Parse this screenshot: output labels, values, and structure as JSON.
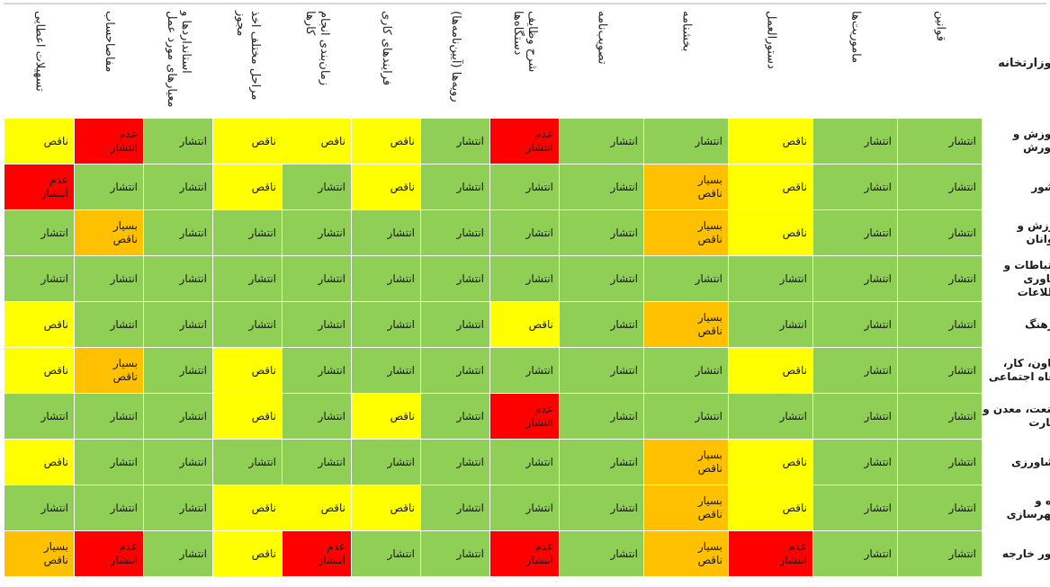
{
  "table": {
    "corner_header": "وزارتخانه",
    "column_headers": [
      "قوانین",
      "ماموریت‌ها",
      "دستورالعمل",
      "بخشنامه",
      "تصویب‌نامه",
      "شرح وظایف دستگاه‌ها",
      "رویه‌ها (آیین‌نامه‌ها)",
      "فرایندهای کاری",
      "زمان‌بندی انجام کارها",
      "مراحل مختلف اخذ مجوز",
      "استانداردها و معیارهای مورد عمل",
      "مفاصاحساب",
      "تسهیلات اعطایی"
    ],
    "rows": [
      {
        "ministry": "آموزش و پرورش",
        "cells": [
          {
            "t": "انتشار",
            "s": "pub"
          },
          {
            "t": "انتشار",
            "s": "pub"
          },
          {
            "t": "ناقص",
            "s": "inc"
          },
          {
            "t": "انتشار",
            "s": "pub"
          },
          {
            "t": "انتشار",
            "s": "pub"
          },
          {
            "t": "عدم انتشار",
            "s": "non"
          },
          {
            "t": "انتشار",
            "s": "pub"
          },
          {
            "t": "ناقص",
            "s": "inc"
          },
          {
            "t": "ناقص",
            "s": "inc"
          },
          {
            "t": "ناقص",
            "s": "inc"
          },
          {
            "t": "انتشار",
            "s": "pub"
          },
          {
            "t": "عدم انتشار",
            "s": "non"
          },
          {
            "t": "ناقص",
            "s": "inc"
          }
        ]
      },
      {
        "ministry": "کشور",
        "cells": [
          {
            "t": "انتشار",
            "s": "pub"
          },
          {
            "t": "انتشار",
            "s": "pub"
          },
          {
            "t": "ناقص",
            "s": "inc"
          },
          {
            "t": "بسیار ناقص",
            "s": "vinc"
          },
          {
            "t": "انتشار",
            "s": "pub"
          },
          {
            "t": "انتشار",
            "s": "pub"
          },
          {
            "t": "انتشار",
            "s": "pub"
          },
          {
            "t": "ناقص",
            "s": "inc"
          },
          {
            "t": "انتشار",
            "s": "pub"
          },
          {
            "t": "ناقص",
            "s": "inc"
          },
          {
            "t": "انتشار",
            "s": "pub"
          },
          {
            "t": "انتشار",
            "s": "pub"
          },
          {
            "t": "عدم انتشار",
            "s": "non"
          }
        ]
      },
      {
        "ministry": "ورزش و جوانان",
        "cells": [
          {
            "t": "انتشار",
            "s": "pub"
          },
          {
            "t": "انتشار",
            "s": "pub"
          },
          {
            "t": "ناقص",
            "s": "inc"
          },
          {
            "t": "بسیار ناقص",
            "s": "vinc"
          },
          {
            "t": "انتشار",
            "s": "pub"
          },
          {
            "t": "انتشار",
            "s": "pub"
          },
          {
            "t": "انتشار",
            "s": "pub"
          },
          {
            "t": "انتشار",
            "s": "pub"
          },
          {
            "t": "انتشار",
            "s": "pub"
          },
          {
            "t": "انتشار",
            "s": "pub"
          },
          {
            "t": "انتشار",
            "s": "pub"
          },
          {
            "t": "بسیار ناقص",
            "s": "vinc"
          },
          {
            "t": "انتشار",
            "s": "pub"
          }
        ]
      },
      {
        "ministry": "ارتباطات و فناوری اطلاعات",
        "cells": [
          {
            "t": "انتشار",
            "s": "pub"
          },
          {
            "t": "انتشار",
            "s": "pub"
          },
          {
            "t": "انتشار",
            "s": "pub"
          },
          {
            "t": "انتشار",
            "s": "pub"
          },
          {
            "t": "انتشار",
            "s": "pub"
          },
          {
            "t": "انتشار",
            "s": "pub"
          },
          {
            "t": "انتشار",
            "s": "pub"
          },
          {
            "t": "انتشار",
            "s": "pub"
          },
          {
            "t": "انتشار",
            "s": "pub"
          },
          {
            "t": "انتشار",
            "s": "pub"
          },
          {
            "t": "انتشار",
            "s": "pub"
          },
          {
            "t": "انتشار",
            "s": "pub"
          },
          {
            "t": "انتشار",
            "s": "pub"
          }
        ]
      },
      {
        "ministry": "فرهنگ",
        "cells": [
          {
            "t": "انتشار",
            "s": "pub"
          },
          {
            "t": "انتشار",
            "s": "pub"
          },
          {
            "t": "انتشار",
            "s": "pub"
          },
          {
            "t": "بسیار ناقص",
            "s": "vinc"
          },
          {
            "t": "انتشار",
            "s": "pub"
          },
          {
            "t": "ناقص",
            "s": "inc"
          },
          {
            "t": "انتشار",
            "s": "pub"
          },
          {
            "t": "انتشار",
            "s": "pub"
          },
          {
            "t": "انتشار",
            "s": "pub"
          },
          {
            "t": "انتشار",
            "s": "pub"
          },
          {
            "t": "انتشار",
            "s": "pub"
          },
          {
            "t": "انتشار",
            "s": "pub"
          },
          {
            "t": "ناقص",
            "s": "inc"
          }
        ]
      },
      {
        "ministry": "تعاون، کار، رفاه اجتماعی",
        "cells": [
          {
            "t": "انتشار",
            "s": "pub"
          },
          {
            "t": "انتشار",
            "s": "pub"
          },
          {
            "t": "ناقص",
            "s": "inc"
          },
          {
            "t": "انتشار",
            "s": "pub"
          },
          {
            "t": "انتشار",
            "s": "pub"
          },
          {
            "t": "انتشار",
            "s": "pub"
          },
          {
            "t": "انتشار",
            "s": "pub"
          },
          {
            "t": "انتشار",
            "s": "pub"
          },
          {
            "t": "انتشار",
            "s": "pub"
          },
          {
            "t": "ناقص",
            "s": "inc"
          },
          {
            "t": "انتشار",
            "s": "pub"
          },
          {
            "t": "بسیار ناقص",
            "s": "vinc"
          },
          {
            "t": "ناقص",
            "s": "inc"
          }
        ]
      },
      {
        "ministry": "صنعت، معدن و تجارت",
        "cells": [
          {
            "t": "انتشار",
            "s": "pub"
          },
          {
            "t": "انتشار",
            "s": "pub"
          },
          {
            "t": "انتشار",
            "s": "pub"
          },
          {
            "t": "انتشار",
            "s": "pub"
          },
          {
            "t": "انتشار",
            "s": "pub"
          },
          {
            "t": "عدم انتشار",
            "s": "non"
          },
          {
            "t": "انتشار",
            "s": "pub"
          },
          {
            "t": "ناقص",
            "s": "inc"
          },
          {
            "t": "انتشار",
            "s": "pub"
          },
          {
            "t": "ناقص",
            "s": "inc"
          },
          {
            "t": "انتشار",
            "s": "pub"
          },
          {
            "t": "انتشار",
            "s": "pub"
          },
          {
            "t": "انتشار",
            "s": "pub"
          }
        ]
      },
      {
        "ministry": "کشاورزی",
        "cells": [
          {
            "t": "انتشار",
            "s": "pub"
          },
          {
            "t": "انتشار",
            "s": "pub"
          },
          {
            "t": "ناقص",
            "s": "inc"
          },
          {
            "t": "بسیار ناقص",
            "s": "vinc"
          },
          {
            "t": "انتشار",
            "s": "pub"
          },
          {
            "t": "انتشار",
            "s": "pub"
          },
          {
            "t": "انتشار",
            "s": "pub"
          },
          {
            "t": "انتشار",
            "s": "pub"
          },
          {
            "t": "انتشار",
            "s": "pub"
          },
          {
            "t": "انتشار",
            "s": "pub"
          },
          {
            "t": "انتشار",
            "s": "pub"
          },
          {
            "t": "انتشار",
            "s": "pub"
          },
          {
            "t": "ناقص",
            "s": "inc"
          }
        ]
      },
      {
        "ministry": "راه و شهرسازی",
        "cells": [
          {
            "t": "انتشار",
            "s": "pub"
          },
          {
            "t": "انتشار",
            "s": "pub"
          },
          {
            "t": "ناقص",
            "s": "inc"
          },
          {
            "t": "بسیار ناقص",
            "s": "vinc"
          },
          {
            "t": "انتشار",
            "s": "pub"
          },
          {
            "t": "انتشار",
            "s": "pub"
          },
          {
            "t": "انتشار",
            "s": "pub"
          },
          {
            "t": "ناقص",
            "s": "inc"
          },
          {
            "t": "ناقص",
            "s": "inc"
          },
          {
            "t": "ناقص",
            "s": "inc"
          },
          {
            "t": "انتشار",
            "s": "pub"
          },
          {
            "t": "انتشار",
            "s": "pub"
          },
          {
            "t": "انتشار",
            "s": "pub"
          }
        ]
      },
      {
        "ministry": "امور خارجه",
        "cells": [
          {
            "t": "انتشار",
            "s": "pub"
          },
          {
            "t": "انتشار",
            "s": "pub"
          },
          {
            "t": "عدم انتشار",
            "s": "non"
          },
          {
            "t": "بسیار ناقص",
            "s": "vinc"
          },
          {
            "t": "انتشار",
            "s": "pub"
          },
          {
            "t": "عدم انتشار",
            "s": "non"
          },
          {
            "t": "انتشار",
            "s": "pub"
          },
          {
            "t": "انتشار",
            "s": "pub"
          },
          {
            "t": "عدم انتشار",
            "s": "non"
          },
          {
            "t": "ناقص",
            "s": "inc"
          },
          {
            "t": "انتشار",
            "s": "pub"
          },
          {
            "t": "عدم انتشار",
            "s": "non"
          },
          {
            "t": "بسیار ناقص",
            "s": "vinc"
          }
        ]
      }
    ]
  },
  "colors": {
    "pub": "#8fcf56",
    "inc": "#ffff00",
    "vinc": "#ffc000",
    "non": "#ff0000"
  }
}
